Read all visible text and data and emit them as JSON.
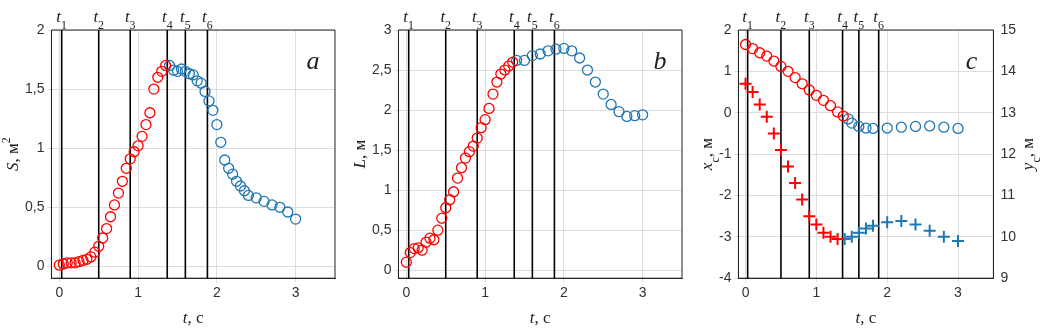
{
  "chart_data": [
    {
      "type": "scatter",
      "xlabel": "t, с",
      "ylabel": "S, м$^{2}$",
      "xlim": [
        -0.1,
        3.5
      ],
      "xticks": [
        0,
        1,
        2,
        3
      ],
      "ylim": [
        -0.1,
        2
      ],
      "yticks": [
        0,
        {
          "value": 0.5,
          "label": "0,5"
        },
        1,
        {
          "value": 1.5,
          "label": "1,5"
        },
        2
      ],
      "grid": true,
      "legend": false,
      "marker": "circle",
      "annotations": [
        "a"
      ],
      "ref_lines": [
        {
          "axis": "x",
          "value": 0.03,
          "label": "t$_{1}$",
          "color": "#000000"
        },
        {
          "axis": "x",
          "value": 0.5,
          "label": "t$_{2}$",
          "color": "#000000"
        },
        {
          "axis": "x",
          "value": 0.9,
          "label": "t$_{3}$",
          "color": "#000000"
        },
        {
          "axis": "x",
          "value": 1.37,
          "label": "t$_{4}$",
          "color": "#000000"
        },
        {
          "axis": "x",
          "value": 1.6,
          "label": "t$_{5}$",
          "color": "#000000"
        },
        {
          "axis": "x",
          "value": 1.88,
          "label": "t$_{6}$",
          "color": "#000000"
        }
      ],
      "series": [
        {
          "color": "#ff0000",
          "x": [
            0,
            0.05,
            0.1,
            0.15,
            0.2,
            0.25,
            0.3,
            0.35,
            0.4,
            0.45,
            0.5,
            0.55,
            0.6,
            0.65,
            0.7,
            0.75,
            0.8,
            0.85,
            0.9,
            0.95,
            1.0,
            1.05,
            1.1,
            1.15,
            1.2,
            1.25,
            1.3,
            1.35
          ],
          "values": [
            0.01,
            0.02,
            0.03,
            0.03,
            0.03,
            0.04,
            0.05,
            0.06,
            0.08,
            0.12,
            0.17,
            0.24,
            0.32,
            0.42,
            0.52,
            0.62,
            0.72,
            0.83,
            0.91,
            0.97,
            1.02,
            1.1,
            1.2,
            1.3,
            1.5,
            1.6,
            1.65,
            1.7
          ]
        },
        {
          "color": "#1f77b4",
          "x": [
            1.4,
            1.45,
            1.5,
            1.55,
            1.6,
            1.65,
            1.7,
            1.75,
            1.8,
            1.85,
            1.9,
            1.95,
            2.0,
            2.05,
            2.1,
            2.15,
            2.2,
            2.25,
            2.3,
            2.35,
            2.4,
            2.5,
            2.6,
            2.7,
            2.8,
            2.9,
            3.0
          ],
          "values": [
            1.7,
            1.66,
            1.65,
            1.67,
            1.65,
            1.63,
            1.62,
            1.57,
            1.55,
            1.48,
            1.4,
            1.32,
            1.2,
            1.05,
            0.9,
            0.83,
            0.78,
            0.72,
            0.68,
            0.64,
            0.6,
            0.58,
            0.55,
            0.52,
            0.5,
            0.46,
            0.4
          ]
        }
      ]
    },
    {
      "type": "scatter",
      "xlabel": "t, с",
      "ylabel": "L, м",
      "xlim": [
        -0.1,
        3.5
      ],
      "xticks": [
        0,
        1,
        2,
        3
      ],
      "ylim": [
        -0.1,
        3
      ],
      "yticks": [
        0,
        {
          "value": 0.5,
          "label": "0,5"
        },
        1,
        {
          "value": 1.5,
          "label": "1,5"
        },
        2,
        {
          "value": 2.5,
          "label": "2,5"
        },
        3
      ],
      "grid": true,
      "legend": false,
      "marker": "circle",
      "annotations": [
        "b"
      ],
      "ref_lines": [
        {
          "axis": "x",
          "value": 0.03,
          "label": "t$_{1}$",
          "color": "#000000"
        },
        {
          "axis": "x",
          "value": 0.5,
          "label": "t$_{2}$",
          "color": "#000000"
        },
        {
          "axis": "x",
          "value": 0.9,
          "label": "t$_{3}$",
          "color": "#000000"
        },
        {
          "axis": "x",
          "value": 1.37,
          "label": "t$_{4}$",
          "color": "#000000"
        },
        {
          "axis": "x",
          "value": 1.6,
          "label": "t$_{5}$",
          "color": "#000000"
        },
        {
          "axis": "x",
          "value": 1.88,
          "label": "t$_{6}$",
          "color": "#000000"
        }
      ],
      "series": [
        {
          "color": "#ff0000",
          "x": [
            0,
            0.05,
            0.1,
            0.15,
            0.2,
            0.25,
            0.3,
            0.35,
            0.4,
            0.45,
            0.5,
            0.55,
            0.6,
            0.65,
            0.7,
            0.75,
            0.8,
            0.85,
            0.9,
            0.95,
            1.0,
            1.05,
            1.1,
            1.15,
            1.2,
            1.25,
            1.3,
            1.35
          ],
          "values": [
            0.1,
            0.22,
            0.27,
            0.28,
            0.25,
            0.35,
            0.4,
            0.38,
            0.5,
            0.65,
            0.78,
            0.88,
            0.98,
            1.15,
            1.28,
            1.4,
            1.48,
            1.55,
            1.65,
            1.78,
            1.88,
            2.02,
            2.2,
            2.35,
            2.45,
            2.5,
            2.55,
            2.6
          ]
        },
        {
          "color": "#1f77b4",
          "x": [
            1.4,
            1.5,
            1.6,
            1.7,
            1.8,
            1.9,
            2.0,
            2.1,
            2.2,
            2.3,
            2.4,
            2.5,
            2.6,
            2.7,
            2.8,
            2.9,
            3.0
          ],
          "values": [
            2.62,
            2.62,
            2.68,
            2.7,
            2.74,
            2.76,
            2.77,
            2.74,
            2.65,
            2.5,
            2.35,
            2.2,
            2.07,
            1.98,
            1.92,
            1.93,
            1.94
          ]
        }
      ]
    },
    {
      "type": "scatter",
      "xlabel": "t, с",
      "ylabel": "x$_{c}$, м",
      "y2label": "y$_{c}$, м",
      "xlim": [
        -0.1,
        3.5
      ],
      "xticks": [
        0,
        1,
        2,
        3
      ],
      "ylim": [
        -4,
        2
      ],
      "yticks": [
        -4,
        -3,
        -2,
        -1,
        0,
        1,
        2
      ],
      "y2lim": [
        9,
        15
      ],
      "y2ticks": [
        9,
        10,
        11,
        12,
        13,
        14,
        15
      ],
      "grid": true,
      "legend": false,
      "marker": "circle",
      "annotations": [
        "c"
      ],
      "ref_lines": [
        {
          "axis": "x",
          "value": 0.03,
          "label": "t$_{1}$",
          "color": "#000000"
        },
        {
          "axis": "x",
          "value": 0.5,
          "label": "t$_{2}$",
          "color": "#000000"
        },
        {
          "axis": "x",
          "value": 0.9,
          "label": "t$_{3}$",
          "color": "#000000"
        },
        {
          "axis": "x",
          "value": 1.37,
          "label": "t$_{4}$",
          "color": "#000000"
        },
        {
          "axis": "x",
          "value": 1.6,
          "label": "t$_{5}$",
          "color": "#000000"
        },
        {
          "axis": "x",
          "value": 1.88,
          "label": "t$_{6}$",
          "color": "#000000"
        }
      ],
      "series": [
        {
          "color": "#ff0000",
          "x": [
            0,
            0.1,
            0.2,
            0.3,
            0.4,
            0.5,
            0.6,
            0.7,
            0.8,
            0.9,
            1.0,
            1.1,
            1.2,
            1.3,
            1.38
          ],
          "values": [
            1.65,
            1.55,
            1.45,
            1.37,
            1.25,
            1.12,
            1.0,
            0.85,
            0.7,
            0.55,
            0.42,
            0.3,
            0.17,
            0.02,
            -0.08
          ]
        },
        {
          "color": "#1f77b4",
          "x": [
            1.45,
            1.5,
            1.6,
            1.7,
            1.8,
            2.0,
            2.2,
            2.4,
            2.6,
            2.8,
            3.0
          ],
          "values": [
            -0.15,
            -0.25,
            -0.33,
            -0.37,
            -0.38,
            -0.37,
            -0.35,
            -0.33,
            -0.32,
            -0.35,
            -0.38
          ]
        },
        {
          "color": "#ff0000",
          "axis": "y2",
          "marker": "cross",
          "x": [
            0,
            0.1,
            0.2,
            0.3,
            0.4,
            0.5,
            0.6,
            0.7,
            0.8,
            0.9,
            1.0,
            1.1,
            1.2,
            1.3
          ],
          "values": [
            13.7,
            13.5,
            13.2,
            12.9,
            12.5,
            12.1,
            11.7,
            11.3,
            10.9,
            10.5,
            10.3,
            10.1,
            10.0,
            9.95
          ]
        },
        {
          "color": "#1f77b4",
          "axis": "y2",
          "marker": "cross",
          "x": [
            1.4,
            1.5,
            1.6,
            1.7,
            1.8,
            2.0,
            2.2,
            2.4,
            2.6,
            2.8,
            3.0
          ],
          "values": [
            9.95,
            10.0,
            10.1,
            10.2,
            10.27,
            10.35,
            10.38,
            10.3,
            10.15,
            10.0,
            9.9
          ]
        }
      ]
    }
  ]
}
